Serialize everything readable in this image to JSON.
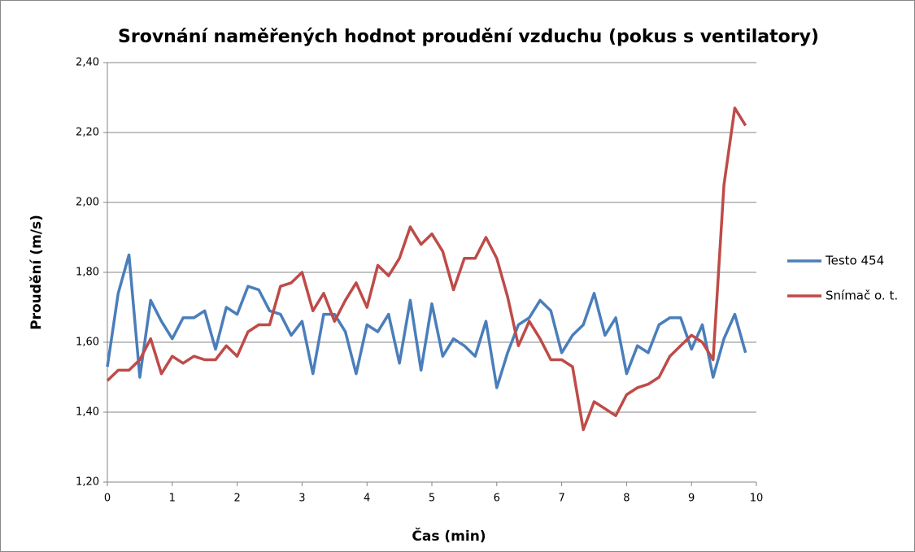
{
  "chart_data": {
    "type": "line",
    "title": "Srovnání naměřených hodnot proudění vzduchu (pokus s ventilatory)",
    "xlabel": "Čas (min)",
    "ylabel": "Proudění (m/s)",
    "x": [
      0,
      0.167,
      0.333,
      0.5,
      0.667,
      0.833,
      1,
      1.167,
      1.333,
      1.5,
      1.667,
      1.833,
      2,
      2.167,
      2.333,
      2.5,
      2.667,
      2.833,
      3,
      3.167,
      3.333,
      3.5,
      3.667,
      3.833,
      4,
      4.167,
      4.333,
      4.5,
      4.667,
      4.833,
      5,
      5.167,
      5.333,
      5.5,
      5.667,
      5.833,
      6,
      6.167,
      6.333,
      6.5,
      6.667,
      6.833,
      7,
      7.167,
      7.333,
      7.5,
      7.667,
      7.833,
      8,
      8.167,
      8.333,
      8.5,
      8.667,
      8.833,
      9,
      9.167,
      9.333,
      9.5,
      9.667,
      9.833
    ],
    "series": [
      {
        "name": "Testo 454",
        "color": "#4a7ebb",
        "values": [
          1.53,
          1.74,
          1.85,
          1.5,
          1.72,
          1.66,
          1.61,
          1.67,
          1.67,
          1.69,
          1.58,
          1.7,
          1.68,
          1.76,
          1.75,
          1.69,
          1.68,
          1.62,
          1.66,
          1.51,
          1.68,
          1.68,
          1.63,
          1.51,
          1.65,
          1.63,
          1.68,
          1.54,
          1.72,
          1.52,
          1.71,
          1.56,
          1.61,
          1.59,
          1.56,
          1.66,
          1.47,
          1.57,
          1.65,
          1.67,
          1.72,
          1.69,
          1.57,
          1.62,
          1.65,
          1.74,
          1.62,
          1.67,
          1.51,
          1.59,
          1.57,
          1.65,
          1.67,
          1.67,
          1.58,
          1.65,
          1.5,
          1.61,
          1.68,
          1.57
        ]
      },
      {
        "name": "Snímač o. t.",
        "color": "#be4b48",
        "values": [
          1.49,
          1.52,
          1.52,
          1.55,
          1.61,
          1.51,
          1.56,
          1.54,
          1.56,
          1.55,
          1.55,
          1.59,
          1.56,
          1.63,
          1.65,
          1.65,
          1.76,
          1.77,
          1.8,
          1.69,
          1.74,
          1.66,
          1.72,
          1.77,
          1.7,
          1.82,
          1.79,
          1.84,
          1.93,
          1.88,
          1.91,
          1.86,
          1.75,
          1.84,
          1.84,
          1.9,
          1.84,
          1.73,
          1.59,
          1.66,
          1.61,
          1.55,
          1.55,
          1.53,
          1.35,
          1.43,
          1.41,
          1.39,
          1.45,
          1.47,
          1.48,
          1.5,
          1.56,
          1.59,
          1.62,
          1.6,
          1.55,
          2.05,
          2.27,
          2.22
        ]
      }
    ],
    "xlim": [
      0,
      10
    ],
    "xticks": [
      0,
      1,
      2,
      3,
      4,
      5,
      6,
      7,
      8,
      9,
      10
    ],
    "ylim": [
      1.2,
      2.4
    ],
    "yticks": [
      {
        "value": 1.2,
        "label": "1,20"
      },
      {
        "value": 1.4,
        "label": "1,40"
      },
      {
        "value": 1.6,
        "label": "1,60"
      },
      {
        "value": 1.8,
        "label": "1,80"
      },
      {
        "value": 2.0,
        "label": "2,00"
      },
      {
        "value": 2.2,
        "label": "2,20"
      },
      {
        "value": 2.4,
        "label": "2,40"
      }
    ],
    "grid": true,
    "legend": "right"
  }
}
